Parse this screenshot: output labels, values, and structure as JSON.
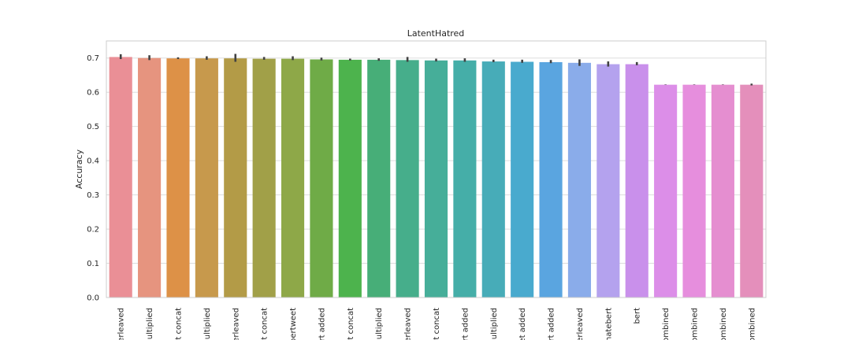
{
  "chart_data": {
    "type": "bar",
    "title": "LatentHatred",
    "xlabel": "",
    "ylabel": "Accuracy",
    "ylim": [
      0,
      0.75
    ],
    "yticks": [
      "0.0",
      "0.1",
      "0.2",
      "0.3",
      "0.4",
      "0.5",
      "0.6",
      "0.7"
    ],
    "grid": "horizontal",
    "categories": [
      "erleaved",
      "nultiplied",
      "t concat",
      "nultiplied",
      "erleaved",
      "et concat",
      "bertweet",
      "ert added",
      "et concat",
      "nultiplied",
      "erleaved",
      "t concat",
      "ert added",
      "nultiplied",
      "et added",
      "rt added",
      "erleaved",
      "hatebert",
      "bert",
      "ombined",
      "ombined",
      "ombined",
      "ombined"
    ],
    "values": [
      0.703,
      0.7,
      0.699,
      0.699,
      0.699,
      0.698,
      0.698,
      0.696,
      0.695,
      0.695,
      0.694,
      0.693,
      0.693,
      0.69,
      0.689,
      0.688,
      0.686,
      0.682,
      0.682,
      0.622,
      0.622,
      0.622,
      0.622
    ],
    "error_low": [
      0.697,
      0.694,
      0.697,
      0.695,
      0.689,
      0.695,
      0.694,
      0.693,
      0.693,
      0.692,
      0.689,
      0.69,
      0.689,
      0.688,
      0.686,
      0.685,
      0.677,
      0.675,
      0.679,
      0.622,
      0.622,
      0.622,
      0.62
    ],
    "error_high": [
      0.71,
      0.707,
      0.701,
      0.704,
      0.711,
      0.702,
      0.704,
      0.7,
      0.697,
      0.698,
      0.702,
      0.697,
      0.698,
      0.694,
      0.694,
      0.693,
      0.695,
      0.689,
      0.687,
      0.622,
      0.622,
      0.622,
      0.624
    ],
    "colors": [
      "#ea8f96",
      "#e6947f",
      "#dd9147",
      "#c7994c",
      "#b39b47",
      "#a1a048",
      "#8ea848",
      "#6fab47",
      "#4db34d",
      "#47ae78",
      "#46ae8b",
      "#46ae99",
      "#45aea8",
      "#47acb8",
      "#49aace",
      "#5aa5e0",
      "#8aacea",
      "#b4a2ee",
      "#c990eb",
      "#dc8ee8",
      "#e68edd",
      "#e58ed0",
      "#e48fbb"
    ]
  }
}
